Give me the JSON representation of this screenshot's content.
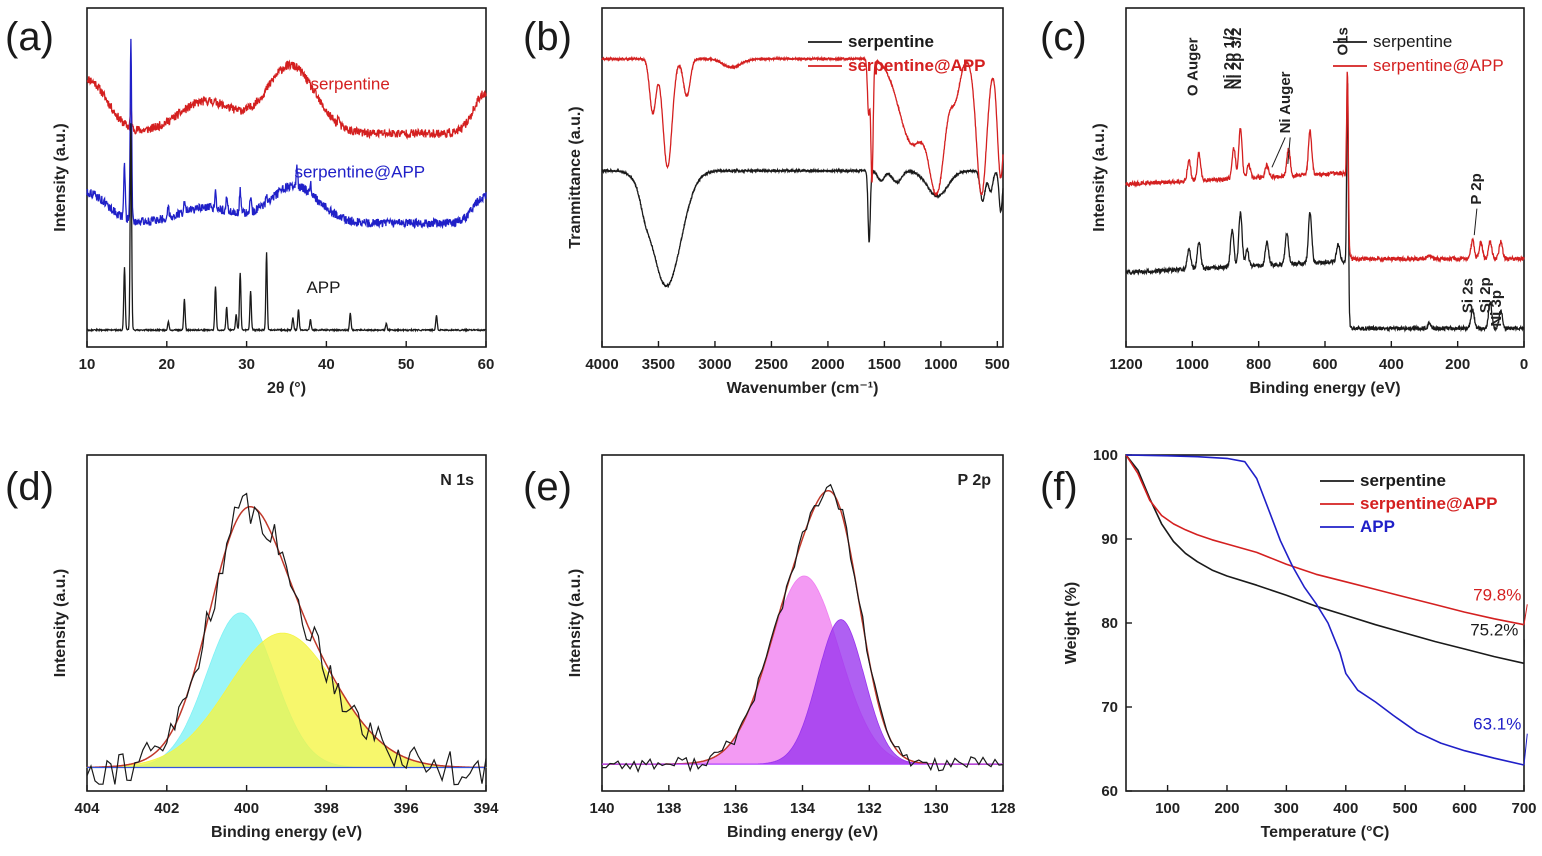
{
  "figure": {
    "description_panels": [
      "a",
      "b",
      "c",
      "d",
      "e",
      "f"
    ]
  },
  "colors": {
    "black": "#1a1a1a",
    "red": "#d42020",
    "blue": "#2020c8",
    "fit_red": "#c0392b",
    "cyan": "#7ff2f5",
    "yellow": "#f5f542",
    "green": "#a5f08a",
    "magenta": "#f07ef0",
    "purple": "#9933ee",
    "purple_line": "#b040ff",
    "baseline_blue": "#3355dd"
  },
  "chart_data": [
    {
      "id": "a",
      "panel_label": "(a)",
      "type": "line",
      "title": "",
      "xlabel": "2θ (°)",
      "ylabel": "Intensity (a.u.)",
      "xlim": [
        10,
        60
      ],
      "xticks": [
        10,
        20,
        30,
        40,
        50,
        60
      ],
      "ylim": [
        0,
        10
      ],
      "yticks": [],
      "series": [
        {
          "name": "serpentine",
          "color": "#d42020",
          "label_at": [
            38,
            7.6
          ],
          "baseline": 6.3,
          "broad_peaks": [
            [
              10,
              1.6,
              2.5
            ],
            [
              25,
              0.95,
              3.5
            ],
            [
              35.5,
              2.0,
              3.0
            ],
            [
              60,
              1.2,
              1.5
            ]
          ],
          "sharp_peaks": [
            [
              15.5,
              0.6
            ],
            [
              41.5,
              0.25
            ]
          ]
        },
        {
          "name": "serpentine@APP",
          "color": "#2020c8",
          "label_at": [
            36,
            5.0
          ],
          "baseline": 3.65,
          "broad_peaks": [
            [
              10,
              0.9,
              2.5
            ],
            [
              25,
              0.45,
              3.5
            ],
            [
              36,
              1.1,
              3.0
            ],
            [
              60,
              0.8,
              1.5
            ]
          ],
          "sharp_peaks": [
            [
              14.7,
              1.55
            ],
            [
              15.5,
              5.3
            ],
            [
              20.2,
              0.3
            ],
            [
              22.2,
              0.35
            ],
            [
              26.1,
              0.6
            ],
            [
              27.5,
              0.45
            ],
            [
              29.2,
              0.65
            ],
            [
              30.5,
              0.45
            ],
            [
              32.5,
              0.3
            ],
            [
              36.3,
              0.55
            ],
            [
              38,
              0.3
            ]
          ]
        },
        {
          "name": "APP",
          "color": "#1a1a1a",
          "label_at": [
            37.5,
            1.6
          ],
          "baseline": 0.5,
          "broad_peaks": [],
          "sharp_peaks": [
            [
              14.7,
              1.85
            ],
            [
              15.5,
              6.1
            ],
            [
              20.2,
              0.25
            ],
            [
              22.2,
              0.9
            ],
            [
              26.1,
              1.3
            ],
            [
              27.5,
              0.7
            ],
            [
              28.7,
              0.45
            ],
            [
              29.2,
              1.7
            ],
            [
              30.5,
              1.15
            ],
            [
              32.5,
              2.3
            ],
            [
              35.8,
              0.35
            ],
            [
              36.5,
              0.6
            ],
            [
              38,
              0.3
            ],
            [
              43,
              0.5
            ],
            [
              47.5,
              0.2
            ],
            [
              53.8,
              0.45
            ]
          ]
        }
      ]
    },
    {
      "id": "b",
      "panel_label": "(b)",
      "type": "line",
      "title": "",
      "xlabel": "Wavenumber (cm⁻¹)",
      "ylabel": "Tranmittance (a.u.)",
      "xlim": [
        4000,
        450
      ],
      "xticks": [
        4000,
        3500,
        3000,
        2500,
        2000,
        1500,
        1000,
        500
      ],
      "ylim": [
        0,
        10
      ],
      "yticks": [],
      "legend_position": "top-right",
      "series": [
        {
          "name": "serpentine",
          "color": "#1a1a1a",
          "baseline": 5.2,
          "dips": [
            [
              3430,
              3.4,
              130
            ],
            [
              3620,
              0.4,
              40
            ],
            [
              1635,
              2.1,
              10
            ],
            [
              1530,
              0.3,
              30
            ],
            [
              1390,
              0.35,
              40
            ],
            [
              1030,
              0.75,
              90
            ],
            [
              630,
              0.9,
              22
            ],
            [
              560,
              0.6,
              20
            ],
            [
              470,
              1.2,
              15
            ]
          ]
        },
        {
          "name": "serpentine@APP",
          "color": "#d42020",
          "baseline": 8.5,
          "dips": [
            [
              3550,
              1.6,
              28
            ],
            [
              3420,
              3.2,
              40
            ],
            [
              3250,
              1.1,
              30
            ],
            [
              2850,
              0.25,
              80
            ],
            [
              1640,
              1.6,
              10
            ],
            [
              1610,
              3.6,
              10
            ],
            [
              1250,
              2.5,
              120
            ],
            [
              1030,
              3.5,
              70
            ],
            [
              870,
              1.0,
              40
            ],
            [
              640,
              4.0,
              45
            ],
            [
              470,
              3.5,
              30
            ]
          ]
        }
      ]
    },
    {
      "id": "c",
      "panel_label": "(c)",
      "type": "line",
      "title": "",
      "xlabel": "Binding energy (eV)",
      "ylabel": "Intensity (a.u.)",
      "xlim": [
        1200,
        0
      ],
      "xticks": [
        1200,
        1000,
        800,
        600,
        400,
        200,
        0
      ],
      "ylim": [
        0,
        10
      ],
      "yticks": [],
      "legend_position": "top-right",
      "peak_labels": [
        {
          "text": "O Auger",
          "x": 985,
          "y": 7.4
        },
        {
          "text": "Ni 2p 1/2",
          "x": 875,
          "y": 7.6
        },
        {
          "text": "Ni 2p 3/2",
          "x": 853,
          "y": 7.6
        },
        {
          "text": "Ni Auger",
          "x": 705,
          "y": 6.3
        },
        {
          "text": "O1s",
          "x": 532,
          "y": 8.6
        },
        {
          "text": "P 2p",
          "x": 130,
          "y": 4.2
        },
        {
          "text": "Si 2s",
          "x": 155,
          "y": 1.0
        },
        {
          "text": "Si 2p",
          "x": 102,
          "y": 1.0
        },
        {
          "text": "Ni 3p",
          "x": 70,
          "y": 0.6
        }
      ],
      "series": [
        {
          "name": "serpentine",
          "color": "#1a1a1a",
          "step": {
            "low": 0.55,
            "high": 2.2,
            "at": 532
          },
          "peaks": [
            [
              1010,
              0.6
            ],
            [
              980,
              0.8
            ],
            [
              880,
              1.1
            ],
            [
              855,
              1.6
            ],
            [
              835,
              0.5
            ],
            [
              775,
              0.7
            ],
            [
              715,
              0.9
            ],
            [
              645,
              1.5
            ],
            [
              560,
              0.5
            ],
            [
              532,
              6.4
            ],
            [
              285,
              0.15
            ],
            [
              155,
              0.55
            ],
            [
              102,
              0.75
            ],
            [
              70,
              0.55
            ]
          ]
        },
        {
          "name": "serpentine@APP",
          "color": "#d42020",
          "step": {
            "low": 2.6,
            "high": 4.8,
            "at": 532
          },
          "peaks": [
            [
              1010,
              0.6
            ],
            [
              980,
              0.8
            ],
            [
              875,
              0.9
            ],
            [
              855,
              1.5
            ],
            [
              830,
              0.4
            ],
            [
              775,
              0.35
            ],
            [
              710,
              0.8
            ],
            [
              645,
              1.3
            ],
            [
              532,
              4.2
            ],
            [
              285,
              0.1
            ],
            [
              155,
              0.55
            ],
            [
              130,
              0.5
            ],
            [
              102,
              0.5
            ],
            [
              70,
              0.5
            ]
          ]
        }
      ]
    },
    {
      "id": "d",
      "panel_label": "(d)",
      "type": "area",
      "title": "N 1s",
      "xlabel": "Binding energy (eV)",
      "ylabel": "Intensity (a.u.)",
      "xlim": [
        404,
        394
      ],
      "xticks": [
        404,
        402,
        400,
        398,
        396,
        394
      ],
      "ylim": [
        0,
        10
      ],
      "yticks": [],
      "baseline": 0.7,
      "components": [
        {
          "name": "component-1",
          "center": 400.15,
          "height": 4.6,
          "sigma": 0.85,
          "fill": "#7ff2f5"
        },
        {
          "name": "component-2",
          "center": 399.1,
          "height": 4.0,
          "sigma": 1.35,
          "fill": "#f5f542"
        }
      ],
      "fit_color": "#c0392b",
      "raw_color": "#1a1a1a",
      "baseline_color": "#3355dd"
    },
    {
      "id": "e",
      "panel_label": "(e)",
      "type": "area",
      "title": "P 2p",
      "xlabel": "Binding energy (eV)",
      "ylabel": "Intensity (a.u.)",
      "xlim": [
        140,
        128
      ],
      "xticks": [
        140,
        138,
        136,
        134,
        132,
        130,
        128
      ],
      "ylim": [
        0,
        10
      ],
      "yticks": [],
      "baseline": 0.8,
      "components": [
        {
          "name": "component-1",
          "center": 133.95,
          "height": 5.6,
          "sigma": 1.05,
          "fill": "#f07ef0"
        },
        {
          "name": "component-2",
          "center": 132.85,
          "height": 4.3,
          "sigma": 0.7,
          "fill": "#9933ee"
        }
      ],
      "fit_color": "#c0392b",
      "raw_color": "#1a1a1a",
      "baseline_color": "#b040ff"
    },
    {
      "id": "f",
      "panel_label": "(f)",
      "type": "line",
      "title": "",
      "xlabel": "Temperature (°C)",
      "ylabel": "Weight (%)",
      "xlim": [
        30,
        700
      ],
      "xticks": [
        100,
        200,
        300,
        400,
        500,
        600,
        700
      ],
      "ylim": [
        60,
        100
      ],
      "yticks": [
        60,
        70,
        80,
        90,
        100
      ],
      "legend_position": "top-right",
      "series": [
        {
          "name": "serpentine",
          "color": "#1a1a1a",
          "final_label": "75.2%",
          "label_at": [
            650,
            78.5
          ],
          "x": [
            30,
            50,
            70,
            90,
            110,
            130,
            150,
            175,
            200,
            250,
            300,
            350,
            400,
            450,
            500,
            550,
            600,
            650,
            700
          ],
          "y": [
            100,
            98.2,
            94.8,
            91.8,
            89.7,
            88.3,
            87.3,
            86.3,
            85.6,
            84.5,
            83.3,
            82.0,
            80.9,
            79.8,
            78.8,
            77.8,
            76.9,
            76.0,
            75.2
          ]
        },
        {
          "name": "serpentine@APP",
          "color": "#d42020",
          "final_label": "79.8%",
          "label_at": [
            655,
            82.7
          ],
          "x": [
            30,
            50,
            70,
            90,
            110,
            130,
            150,
            175,
            200,
            250,
            300,
            350,
            400,
            450,
            500,
            550,
            600,
            650,
            700
          ],
          "y": [
            100,
            97.8,
            94.6,
            92.8,
            91.8,
            91.1,
            90.5,
            89.9,
            89.4,
            88.4,
            87.0,
            85.8,
            84.9,
            84.0,
            83.1,
            82.2,
            81.3,
            80.5,
            79.8
          ]
        },
        {
          "name": "APP",
          "color": "#2020c8",
          "final_label": "63.1%",
          "label_at": [
            655,
            67.3
          ],
          "x": [
            30,
            100,
            150,
            200,
            230,
            250,
            270,
            290,
            310,
            330,
            350,
            370,
            390,
            400,
            420,
            450,
            480,
            520,
            560,
            600,
            650,
            700
          ],
          "y": [
            100,
            99.9,
            99.8,
            99.6,
            99.2,
            97.2,
            93.5,
            89.8,
            86.8,
            84.3,
            82.3,
            80.0,
            76.5,
            74.0,
            72.0,
            70.6,
            69.0,
            67.0,
            65.7,
            64.8,
            63.9,
            63.1
          ]
        }
      ]
    }
  ]
}
